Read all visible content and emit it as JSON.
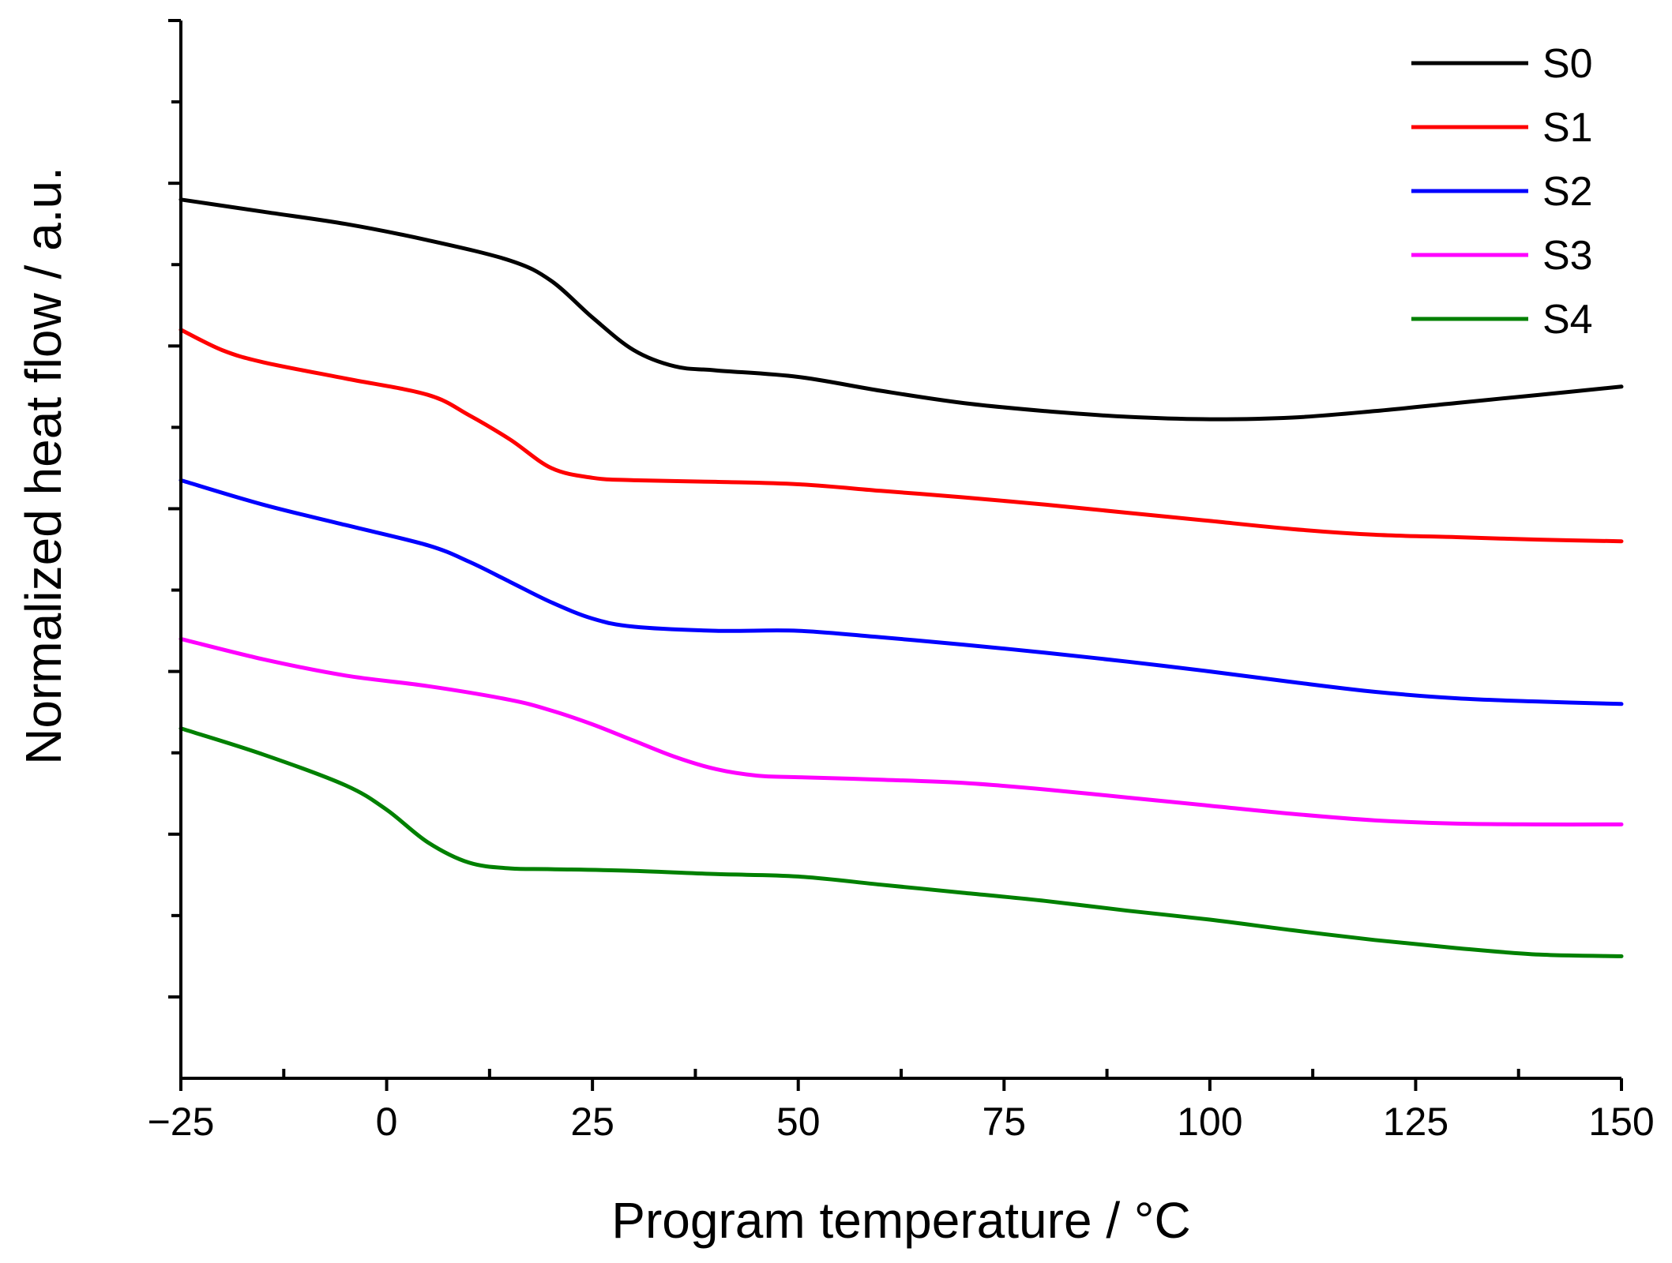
{
  "chart_data": {
    "type": "line",
    "title": "",
    "xlabel": "Program temperature / °C",
    "ylabel": "Normalized heat flow / a.u.",
    "xlim": [
      -25,
      150
    ],
    "ylim": [
      0,
      13
    ],
    "x_ticks": [
      -25,
      0,
      25,
      50,
      75,
      100,
      125,
      150
    ],
    "x_tick_labels": [
      "−25",
      "0",
      "25",
      "50",
      "75",
      "100",
      "125",
      "150"
    ],
    "y_ticks": [
      1,
      2,
      3,
      4,
      5,
      6,
      7,
      8,
      9,
      10,
      11,
      12,
      13
    ],
    "y_tick_labels_visible": false,
    "grid": false,
    "legend_position": "top-right",
    "series": [
      {
        "name": "S0",
        "color": "#000000",
        "x": [
          -25,
          -15,
          -5,
          5,
          15,
          20,
          25,
          30,
          35,
          40,
          50,
          60,
          70,
          80,
          90,
          100,
          110,
          120,
          130,
          140,
          150
        ],
        "y": [
          10.8,
          10.65,
          10.5,
          10.3,
          10.05,
          9.8,
          9.35,
          8.95,
          8.75,
          8.7,
          8.62,
          8.45,
          8.3,
          8.2,
          8.13,
          8.1,
          8.12,
          8.2,
          8.3,
          8.4,
          8.5
        ]
      },
      {
        "name": "S1",
        "color": "#ff0000",
        "x": [
          -25,
          -20,
          -15,
          -5,
          5,
          10,
          15,
          20,
          25,
          30,
          40,
          50,
          60,
          70,
          80,
          90,
          100,
          110,
          120,
          130,
          140,
          150
        ],
        "y": [
          9.2,
          8.95,
          8.8,
          8.6,
          8.4,
          8.15,
          7.85,
          7.5,
          7.38,
          7.35,
          7.33,
          7.3,
          7.22,
          7.14,
          7.05,
          6.95,
          6.85,
          6.75,
          6.68,
          6.65,
          6.62,
          6.6
        ]
      },
      {
        "name": "S2",
        "color": "#0000ff",
        "x": [
          -25,
          -15,
          -5,
          5,
          10,
          15,
          20,
          25,
          30,
          40,
          50,
          60,
          70,
          80,
          90,
          100,
          110,
          120,
          130,
          140,
          150
        ],
        "y": [
          7.35,
          7.05,
          6.8,
          6.55,
          6.35,
          6.1,
          5.85,
          5.65,
          5.55,
          5.5,
          5.5,
          5.42,
          5.33,
          5.23,
          5.12,
          5.0,
          4.87,
          4.75,
          4.67,
          4.63,
          4.6
        ]
      },
      {
        "name": "S3",
        "color": "#ff00ff",
        "x": [
          -25,
          -15,
          -5,
          5,
          15,
          20,
          25,
          30,
          35,
          40,
          45,
          50,
          60,
          70,
          80,
          90,
          100,
          110,
          120,
          130,
          140,
          150
        ],
        "y": [
          5.4,
          5.15,
          4.95,
          4.82,
          4.65,
          4.52,
          4.35,
          4.15,
          3.95,
          3.8,
          3.72,
          3.7,
          3.67,
          3.63,
          3.55,
          3.45,
          3.35,
          3.25,
          3.17,
          3.13,
          3.12,
          3.12
        ]
      },
      {
        "name": "S4",
        "color": "#008000",
        "x": [
          -25,
          -15,
          -5,
          0,
          5,
          10,
          15,
          20,
          30,
          40,
          50,
          60,
          70,
          80,
          90,
          100,
          110,
          120,
          130,
          140,
          150
        ],
        "y": [
          4.3,
          3.98,
          3.6,
          3.3,
          2.9,
          2.65,
          2.58,
          2.57,
          2.55,
          2.51,
          2.48,
          2.38,
          2.28,
          2.18,
          2.06,
          1.95,
          1.82,
          1.7,
          1.6,
          1.52,
          1.5
        ]
      }
    ]
  }
}
